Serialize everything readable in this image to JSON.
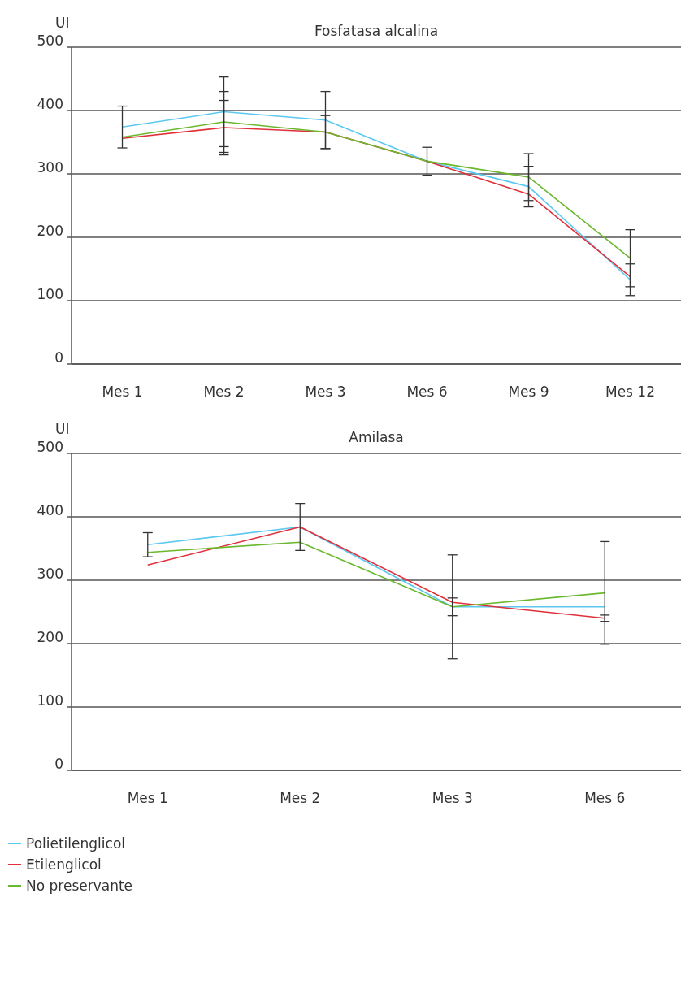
{
  "chart_data": [
    {
      "type": "line",
      "title": "Fosfatasa alcalina",
      "ylabel": "UI",
      "categories": [
        "Mes 1",
        "Mes 2",
        "Mes 3",
        "Mes 6",
        "Mes 9",
        "Mes 12"
      ],
      "ylim": [
        0,
        500
      ],
      "yticks": [
        0,
        100,
        200,
        300,
        400,
        500
      ],
      "grid": "y",
      "legend": false,
      "series": [
        {
          "color": "#5bc8f0",
          "values": [
            374,
            398,
            385,
            320,
            280,
            133
          ],
          "errors": [
            33,
            55,
            45,
            22,
            32,
            25
          ]
        },
        {
          "color": "#e0303a",
          "values": [
            356,
            373,
            366,
            320,
            268,
            138
          ],
          "errors": [
            null,
            43,
            null,
            null,
            null,
            null
          ]
        },
        {
          "color": "#6ab82e",
          "values": [
            358,
            382,
            366,
            320,
            295,
            167
          ],
          "errors": [
            null,
            48,
            26,
            null,
            37,
            45
          ]
        }
      ]
    },
    {
      "type": "line",
      "title": "Amilasa",
      "ylabel": "UI",
      "categories": [
        "Mes 1",
        "Mes 2",
        "Mes 3",
        "Mes 6"
      ],
      "ylim": [
        0,
        500
      ],
      "yticks": [
        0,
        100,
        200,
        300,
        400,
        500
      ],
      "grid": "y",
      "legend": "bottom left",
      "series": [
        {
          "name": "Polietilenglicol",
          "color": "#5bc8f0",
          "values": [
            356,
            384,
            258,
            258
          ],
          "errors": [
            19,
            37,
            82,
            null
          ]
        },
        {
          "name": "Etilenglicol",
          "color": "#e0303a",
          "values": [
            324,
            384,
            265,
            240
          ],
          "errors": [
            null,
            null,
            null,
            5
          ]
        },
        {
          "name": "No preservante",
          "color": "#6ab82e",
          "values": [
            344,
            360,
            258,
            280
          ],
          "errors": [
            null,
            null,
            14,
            81
          ]
        }
      ]
    }
  ]
}
